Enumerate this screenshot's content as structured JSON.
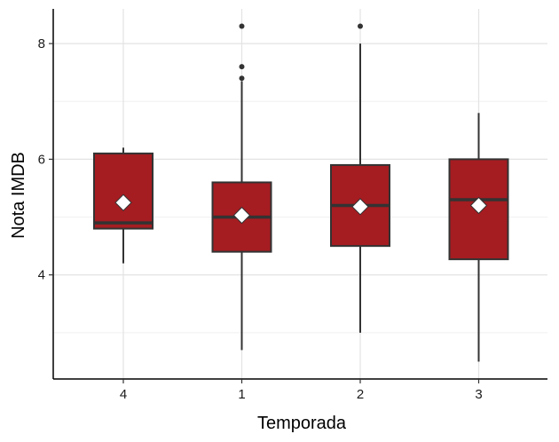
{
  "chart_data": {
    "type": "boxplot",
    "xlabel": "Temporada",
    "ylabel": "Nota IMDB",
    "categories": [
      "4",
      "1",
      "2",
      "3"
    ],
    "yticks": [
      4,
      6,
      8
    ],
    "ylim": [
      2.2,
      8.6
    ],
    "grid": true,
    "box_color": "#a51c21",
    "mean_marker": "white-diamond",
    "boxes": [
      {
        "category": "4",
        "lower_whisker": 4.2,
        "q1": 4.8,
        "median": 4.9,
        "q3": 6.1,
        "upper_whisker": 6.2,
        "mean": 5.25,
        "outliers": []
      },
      {
        "category": "1",
        "lower_whisker": 2.7,
        "q1": 4.4,
        "median": 5.0,
        "q3": 5.6,
        "upper_whisker": 7.35,
        "mean": 5.03,
        "outliers": [
          7.4,
          7.6,
          8.3
        ]
      },
      {
        "category": "2",
        "lower_whisker": 3.0,
        "q1": 4.5,
        "median": 5.2,
        "q3": 5.9,
        "upper_whisker": 8.0,
        "mean": 5.18,
        "outliers": [
          8.3
        ]
      },
      {
        "category": "3",
        "lower_whisker": 2.5,
        "q1": 4.27,
        "median": 5.3,
        "q3": 6.0,
        "upper_whisker": 6.8,
        "mean": 5.2,
        "outliers": []
      }
    ]
  }
}
